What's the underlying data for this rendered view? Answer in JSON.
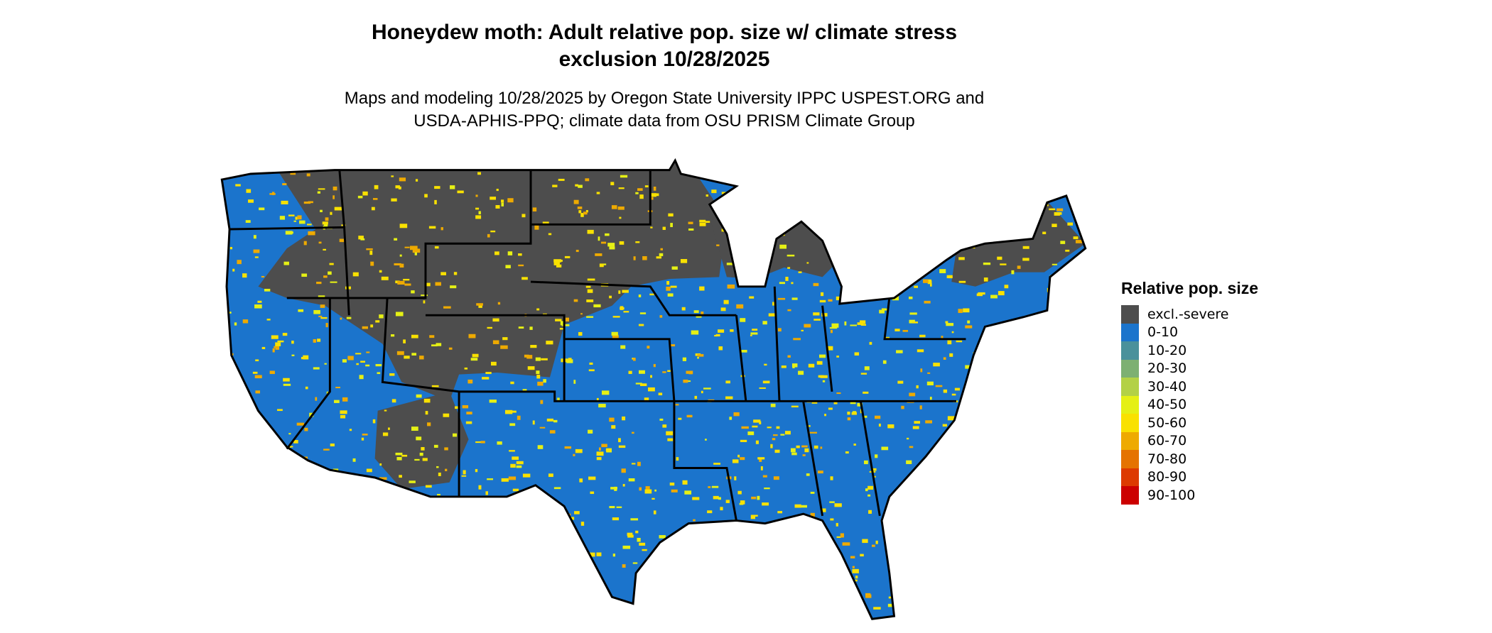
{
  "title": {
    "line1": "Honeydew moth: Adult relative pop. size w/ climate stress",
    "line2": "exclusion 10/28/2025"
  },
  "subtitle": {
    "line1": "Maps and modeling 10/28/2025 by Oregon State University IPPC USPEST.ORG and",
    "line2": "USDA-APHIS-PPQ; climate data from OSU PRISM Climate Group"
  },
  "legend": {
    "title": "Relative pop. size",
    "items": [
      {
        "label": "excl.-severe",
        "color": "#4d4d4d"
      },
      {
        "label": "0-10",
        "color": "#1b74cc"
      },
      {
        "label": "10-20",
        "color": "#4a919b"
      },
      {
        "label": "20-30",
        "color": "#7db072"
      },
      {
        "label": "30-40",
        "color": "#b3d146"
      },
      {
        "label": "40-50",
        "color": "#e5f015"
      },
      {
        "label": "50-60",
        "color": "#f9e100"
      },
      {
        "label": "60-70",
        "color": "#eeaa00"
      },
      {
        "label": "70-80",
        "color": "#e57300"
      },
      {
        "label": "80-90",
        "color": "#dd3a00"
      },
      {
        "label": "90-100",
        "color": "#cc0000"
      }
    ]
  }
}
